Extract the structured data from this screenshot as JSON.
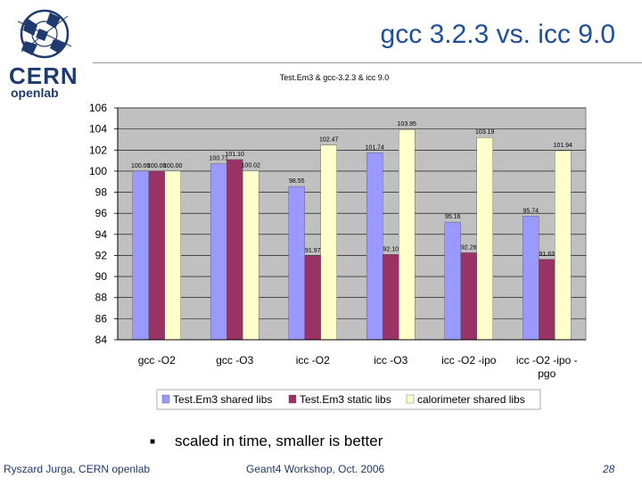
{
  "slide": {
    "title": "gcc 3.2.3 vs. icc 9.0",
    "logo_text": [
      "CERN",
      "openlab"
    ],
    "bullet": "scaled in time, smaller is better",
    "footer_left": "Ryszard Jurga, CERN openlab",
    "footer_center": "Geant4 Workshop, Oct. 2006",
    "footer_right": "28",
    "colors": {
      "title": "#1f4e9a",
      "logo_dark": "#1f3a6e",
      "footer_text": "#1f3a6e"
    }
  },
  "chart_data": {
    "type": "bar",
    "title": "Test.Em3 & gcc-3.2.3 & icc 9.0",
    "xlabel": "",
    "ylabel": "",
    "ylim": [
      84,
      106
    ],
    "yticks": [
      84,
      86,
      88,
      90,
      92,
      94,
      96,
      98,
      100,
      102,
      104,
      106
    ],
    "categories": [
      [
        "gcc -O2"
      ],
      [
        "gcc -O3"
      ],
      [
        "icc -O2"
      ],
      [
        "icc -O3"
      ],
      [
        "icc -O2 -ipo"
      ],
      [
        "icc -O2 -ipo -",
        "pgo"
      ]
    ],
    "series": [
      {
        "name": "Test.Em3 shared libs",
        "color": "#9999ff",
        "values": [
          100.0,
          100.71,
          98.55,
          101.74,
          95.16,
          95.74
        ]
      },
      {
        "name": "Test.Em3 static libs",
        "color": "#993366",
        "values": [
          100.0,
          101.1,
          91.97,
          92.1,
          92.26,
          91.63
        ]
      },
      {
        "name": "calorimeter shared libs",
        "color": "#ffffcc",
        "values": [
          100.0,
          100.02,
          102.47,
          103.95,
          103.19,
          101.94
        ]
      }
    ],
    "data_labels": [
      [
        "100.00",
        "100.00",
        "100.00"
      ],
      [
        "100.71",
        "101.10",
        "100.02"
      ],
      [
        "98.55",
        "91.97",
        "102.47"
      ],
      [
        "101.74",
        "92.10",
        "103.95"
      ],
      [
        "95.16",
        "92.26",
        "103.19"
      ],
      [
        "95.74",
        "91.63",
        "101.94"
      ]
    ],
    "grid": true,
    "legend_position": "bottom",
    "plot_background": "#c0c0c0"
  }
}
